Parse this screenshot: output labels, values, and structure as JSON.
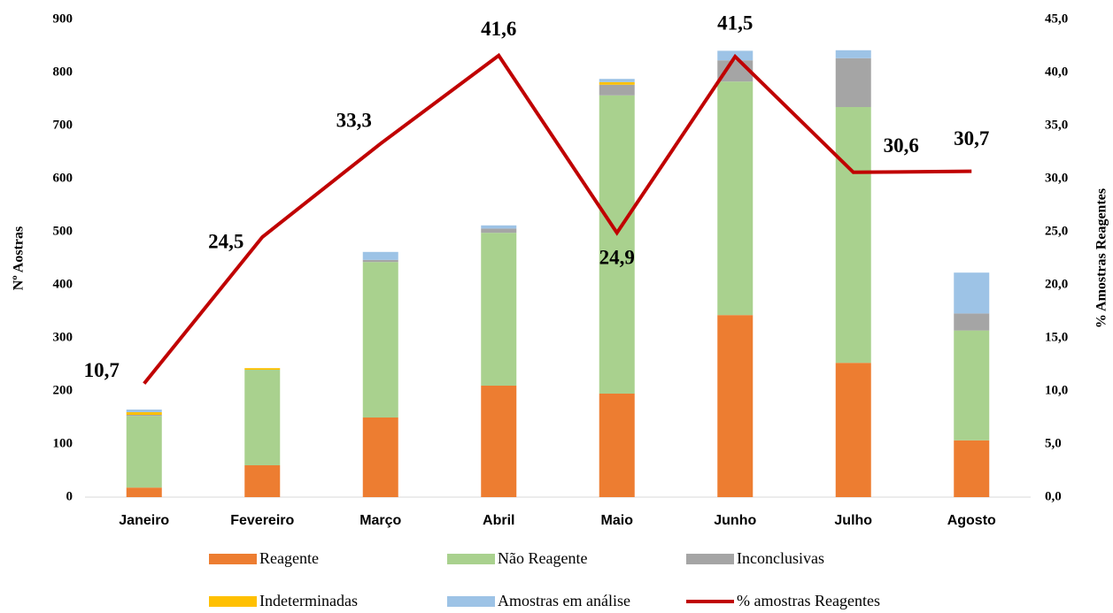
{
  "chart_data": {
    "type": "bar",
    "categories": [
      "Janeiro",
      "Fevereiro",
      "Março",
      "Abril",
      "Maio",
      "Junho",
      "Julho",
      "Agosto"
    ],
    "series": [
      {
        "name": "Reagente",
        "color": "#ed7d31",
        "values": [
          18,
          60,
          150,
          210,
          195,
          343,
          253,
          107
        ]
      },
      {
        "name": "Não Reagente",
        "color": "#a9d18e",
        "values": [
          135,
          180,
          293,
          288,
          562,
          440,
          482,
          207
        ]
      },
      {
        "name": "Inconclusivas",
        "color": "#a5a5a5",
        "values": [
          2,
          0,
          4,
          8,
          20,
          40,
          92,
          32
        ]
      },
      {
        "name": "Indeterminadas",
        "color": "#ffc000",
        "values": [
          5,
          3,
          0,
          0,
          5,
          0,
          0,
          0
        ]
      },
      {
        "name": "Amostras em análise",
        "color": "#9dc3e6",
        "values": [
          5,
          0,
          15,
          6,
          6,
          18,
          15,
          77
        ]
      },
      {
        "name": "% amostras Reagentes",
        "type": "line",
        "axis": "y2",
        "color": "#c00000",
        "values": [
          10.7,
          24.5,
          33.3,
          41.6,
          24.9,
          41.5,
          30.6,
          30.7
        ],
        "value_labels": [
          "10,7",
          "24,5",
          "33,3",
          "41,6",
          "24,9",
          "41,5",
          "30,6",
          "30,7"
        ]
      }
    ],
    "ylabel": "Nº Aostras",
    "y2label": "% Amostras Reagentes",
    "ylim": [
      0,
      900
    ],
    "yticks": [
      0,
      100,
      200,
      300,
      400,
      500,
      600,
      700,
      800,
      900
    ],
    "y2lim": [
      0,
      45
    ],
    "y2ticks": [
      {
        "value": 0,
        "label": "0,0"
      },
      {
        "value": 5,
        "label": "5,0"
      },
      {
        "value": 10,
        "label": "10,0"
      },
      {
        "value": 15,
        "label": "15,0"
      },
      {
        "value": 20,
        "label": "20,0"
      },
      {
        "value": 25,
        "label": "25,0"
      },
      {
        "value": 30,
        "label": "30,0"
      },
      {
        "value": 35,
        "label": "35,0"
      },
      {
        "value": 40,
        "label": "40,0"
      },
      {
        "value": 45,
        "label": "45,0"
      }
    ],
    "grid": false
  }
}
